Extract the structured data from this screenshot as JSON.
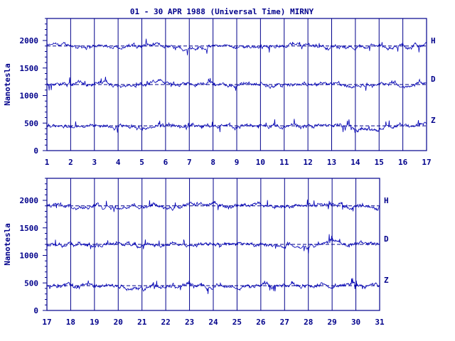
{
  "title": "01 - 30 APR 1988 (Universal Time) MIRNY",
  "colors": {
    "ink": "#00008b",
    "trace": "#0000b4",
    "grid": "#00008b",
    "background": "#ffffff"
  },
  "chart_data": [
    {
      "type": "line",
      "title": "01 - 30 APR 1988 (Universal Time) MIRNY",
      "ylabel": "Nanotesla",
      "xlabel": "",
      "x_ticks": [
        "1",
        "2",
        "3",
        "4",
        "5",
        "6",
        "7",
        "8",
        "9",
        "10",
        "11",
        "12",
        "13",
        "14",
        "15",
        "16",
        "17"
      ],
      "xlim": [
        1,
        17
      ],
      "y_ticks": [
        0,
        500,
        1000,
        1500,
        2000
      ],
      "ylim": [
        0,
        2400
      ],
      "grid": "vertical lines at each day",
      "series": [
        {
          "name": "H",
          "baseline": 1900
        },
        {
          "name": "D",
          "baseline": 1200
        },
        {
          "name": "Z",
          "baseline": 450
        }
      ]
    },
    {
      "type": "line",
      "ylabel": "Nanotesla",
      "xlabel": "",
      "x_ticks": [
        "17",
        "18",
        "19",
        "20",
        "21",
        "22",
        "23",
        "24",
        "25",
        "26",
        "27",
        "28",
        "29",
        "30",
        "31"
      ],
      "xlim": [
        17,
        31
      ],
      "y_ticks": [
        0,
        500,
        1000,
        1500,
        2000
      ],
      "ylim": [
        0,
        2400
      ],
      "grid": "vertical lines at each day",
      "series": [
        {
          "name": "H",
          "baseline": 1900
        },
        {
          "name": "D",
          "baseline": 1200
        },
        {
          "name": "Z",
          "baseline": 450
        }
      ]
    }
  ]
}
